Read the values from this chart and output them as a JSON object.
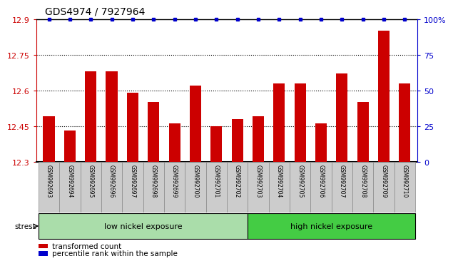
{
  "title": "GDS4974 / 7927964",
  "samples": [
    "GSM992693",
    "GSM992694",
    "GSM992695",
    "GSM992696",
    "GSM992697",
    "GSM992698",
    "GSM992699",
    "GSM992700",
    "GSM992701",
    "GSM992702",
    "GSM992703",
    "GSM992704",
    "GSM992705",
    "GSM992706",
    "GSM992707",
    "GSM992708",
    "GSM992709",
    "GSM992710"
  ],
  "values": [
    12.49,
    12.43,
    12.68,
    12.68,
    12.59,
    12.55,
    12.46,
    12.62,
    12.45,
    12.48,
    12.49,
    12.63,
    12.63,
    12.46,
    12.67,
    12.55,
    12.85,
    12.63
  ],
  "ylim_left": [
    12.3,
    12.9
  ],
  "ylim_right": [
    0,
    100
  ],
  "yticks_left": [
    12.3,
    12.45,
    12.6,
    12.75,
    12.9
  ],
  "yticks_right": [
    0,
    25,
    50,
    75,
    100
  ],
  "ytick_labels_right": [
    "0",
    "25",
    "50",
    "75",
    "100%"
  ],
  "bar_color": "#CC0000",
  "dot_color": "#0000CC",
  "tick_bg_color": "#cccccc",
  "tick_border_color": "#888888",
  "low_nickel_color": "#aaddaa",
  "high_nickel_color": "#44cc44",
  "low_nickel_indices": [
    0,
    1,
    2,
    3,
    4,
    5,
    6,
    7,
    8,
    9
  ],
  "high_nickel_indices": [
    10,
    11,
    12,
    13,
    14,
    15,
    16,
    17
  ],
  "low_nickel_label": "low nickel exposure",
  "high_nickel_label": "high nickel exposure",
  "stress_label": "stress",
  "legend_bar_label": "transformed count",
  "legend_dot_label": "percentile rank within the sample"
}
